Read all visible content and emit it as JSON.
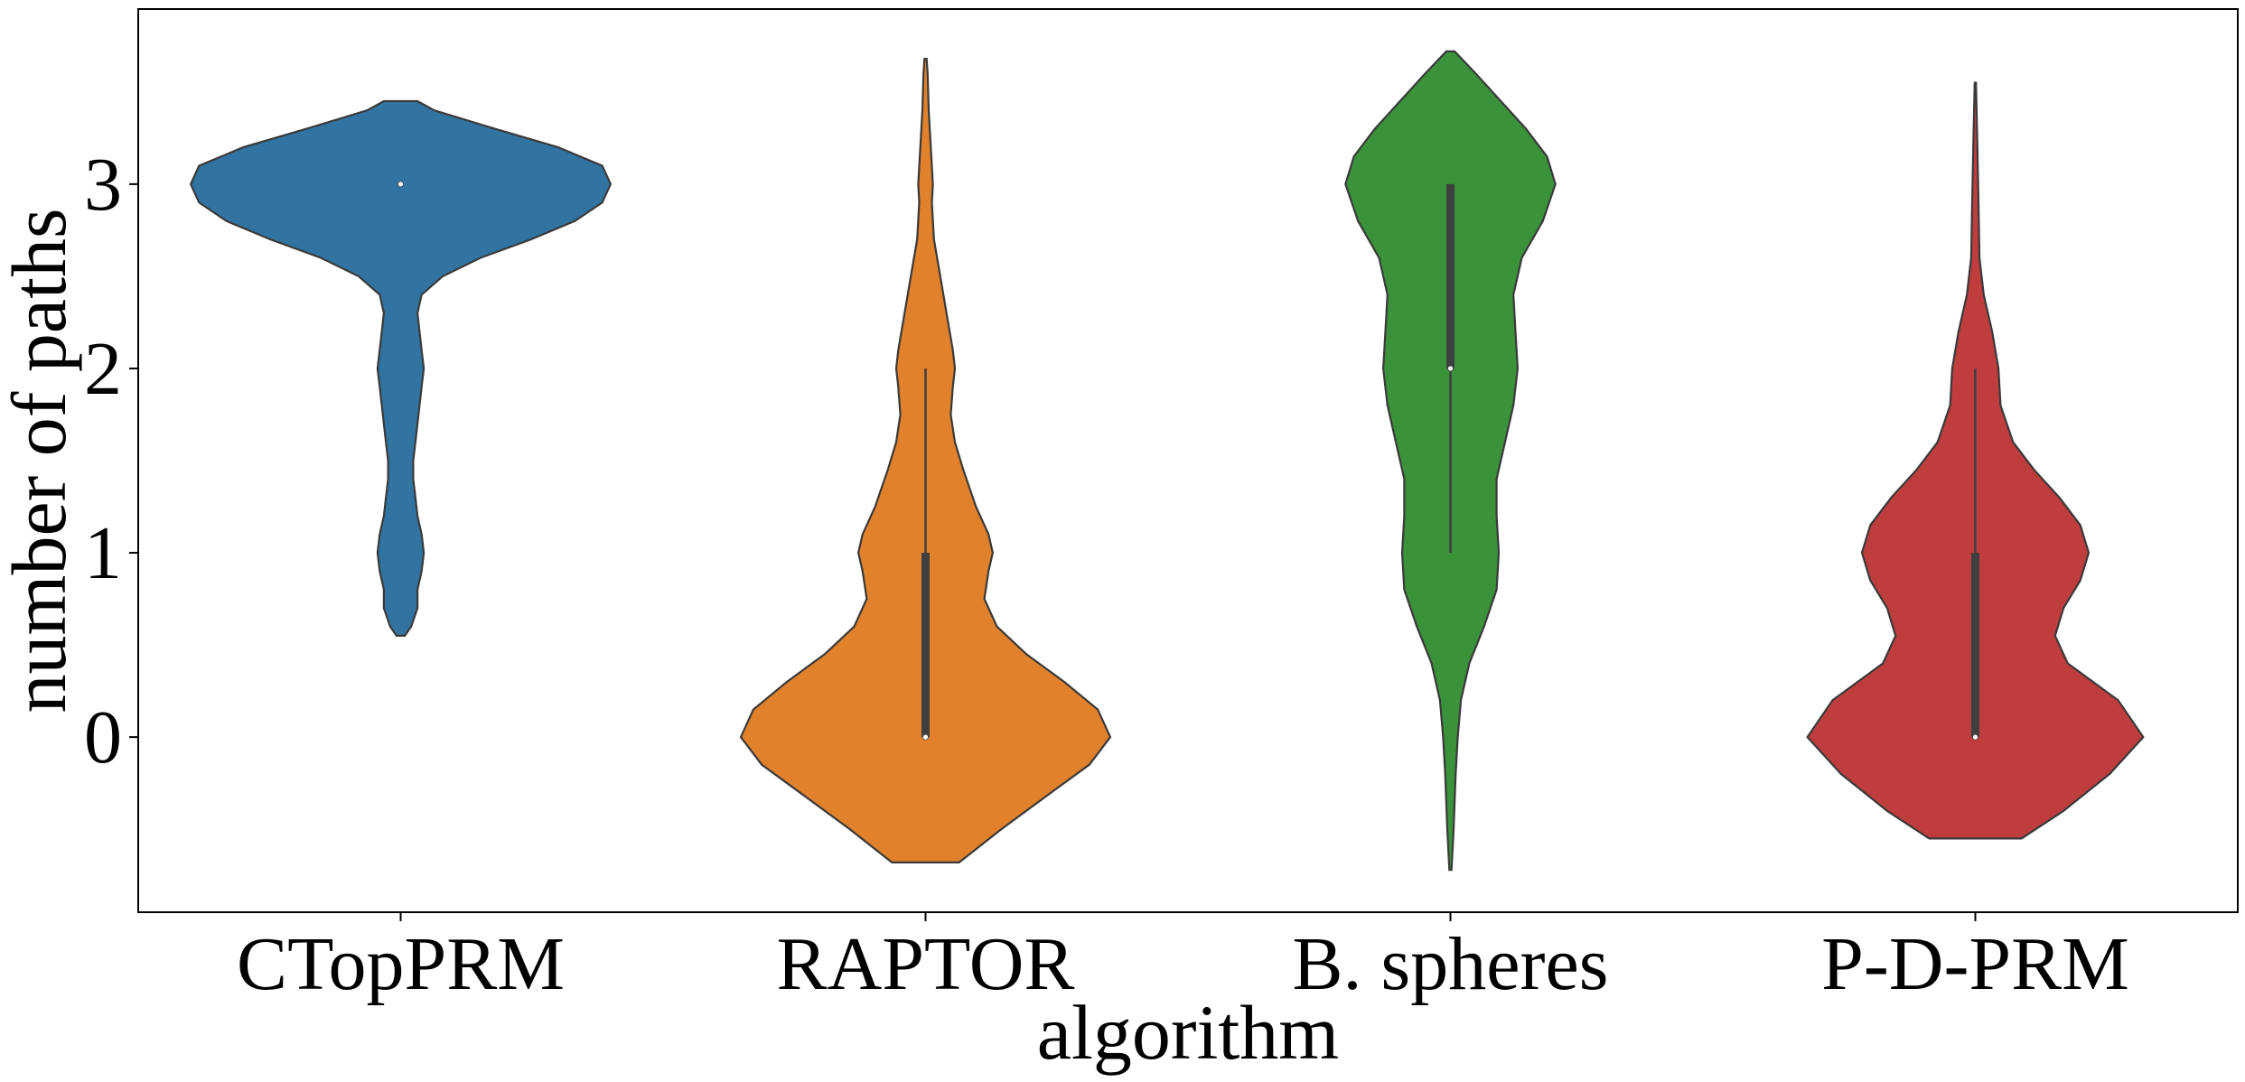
{
  "chart_data": {
    "type": "violin",
    "title": "",
    "xlabel": "algorithm",
    "ylabel": "number of paths",
    "categories": [
      "CTopPRM",
      "RAPTOR",
      "B. spheres",
      "P-D-PRM"
    ],
    "yticks": [
      "0",
      "1",
      "2",
      "3"
    ],
    "ylim": [
      -0.95,
      3.95
    ],
    "grid": false,
    "legend": "none",
    "series": [
      {
        "category": "CTopPRM",
        "color": "#3274a1",
        "median": 3,
        "q1": 3,
        "q3": 3,
        "whisker_low": 3,
        "whisker_high": 3,
        "y_min": 0.55,
        "y_max": 3.45,
        "density": [
          [
            0.55,
            0.02
          ],
          [
            0.6,
            0.05
          ],
          [
            0.7,
            0.08
          ],
          [
            0.8,
            0.08
          ],
          [
            0.9,
            0.1
          ],
          [
            1.0,
            0.11
          ],
          [
            1.1,
            0.1
          ],
          [
            1.2,
            0.08
          ],
          [
            1.3,
            0.07
          ],
          [
            1.4,
            0.06
          ],
          [
            1.5,
            0.06
          ],
          [
            1.6,
            0.07
          ],
          [
            1.7,
            0.08
          ],
          [
            1.8,
            0.09
          ],
          [
            1.9,
            0.1
          ],
          [
            2.0,
            0.11
          ],
          [
            2.1,
            0.1
          ],
          [
            2.2,
            0.09
          ],
          [
            2.3,
            0.08
          ],
          [
            2.4,
            0.1
          ],
          [
            2.5,
            0.2
          ],
          [
            2.6,
            0.38
          ],
          [
            2.7,
            0.62
          ],
          [
            2.8,
            0.83
          ],
          [
            2.9,
            0.96
          ],
          [
            3.0,
            1.0
          ],
          [
            3.1,
            0.96
          ],
          [
            3.2,
            0.75
          ],
          [
            3.3,
            0.45
          ],
          [
            3.4,
            0.16
          ],
          [
            3.45,
            0.08
          ]
        ]
      },
      {
        "category": "RAPTOR",
        "color": "#e1812c",
        "median": 0,
        "q1": 0,
        "q3": 1,
        "whisker_low": 0,
        "whisker_high": 2,
        "y_min": -0.68,
        "y_max": 3.68,
        "density": [
          [
            -0.68,
            0.16
          ],
          [
            -0.5,
            0.36
          ],
          [
            -0.3,
            0.6
          ],
          [
            -0.15,
            0.78
          ],
          [
            0.0,
            0.88
          ],
          [
            0.15,
            0.82
          ],
          [
            0.3,
            0.66
          ],
          [
            0.45,
            0.48
          ],
          [
            0.6,
            0.34
          ],
          [
            0.75,
            0.28
          ],
          [
            0.9,
            0.3
          ],
          [
            1.0,
            0.32
          ],
          [
            1.1,
            0.3
          ],
          [
            1.25,
            0.24
          ],
          [
            1.45,
            0.18
          ],
          [
            1.6,
            0.14
          ],
          [
            1.75,
            0.12
          ],
          [
            1.9,
            0.13
          ],
          [
            2.0,
            0.14
          ],
          [
            2.1,
            0.13
          ],
          [
            2.3,
            0.1
          ],
          [
            2.5,
            0.07
          ],
          [
            2.7,
            0.04
          ],
          [
            2.9,
            0.03
          ],
          [
            3.0,
            0.035
          ],
          [
            3.2,
            0.025
          ],
          [
            3.4,
            0.015
          ],
          [
            3.6,
            0.01
          ],
          [
            3.68,
            0.005
          ]
        ]
      },
      {
        "category": "B. spheres",
        "color": "#3a923a",
        "median": 2,
        "q1": 2,
        "q3": 3,
        "whisker_low": 1,
        "whisker_high": 3,
        "y_min": -0.72,
        "y_max": 3.72,
        "density": [
          [
            -0.72,
            0.005
          ],
          [
            -0.5,
            0.015
          ],
          [
            -0.2,
            0.025
          ],
          [
            0.0,
            0.035
          ],
          [
            0.2,
            0.05
          ],
          [
            0.4,
            0.09
          ],
          [
            0.6,
            0.16
          ],
          [
            0.8,
            0.22
          ],
          [
            1.0,
            0.23
          ],
          [
            1.2,
            0.22
          ],
          [
            1.4,
            0.22
          ],
          [
            1.6,
            0.26
          ],
          [
            1.8,
            0.3
          ],
          [
            2.0,
            0.32
          ],
          [
            2.2,
            0.31
          ],
          [
            2.4,
            0.3
          ],
          [
            2.6,
            0.34
          ],
          [
            2.8,
            0.44
          ],
          [
            3.0,
            0.5
          ],
          [
            3.15,
            0.46
          ],
          [
            3.3,
            0.36
          ],
          [
            3.45,
            0.24
          ],
          [
            3.6,
            0.12
          ],
          [
            3.72,
            0.02
          ]
        ]
      },
      {
        "category": "P-D-PRM",
        "color": "#c03d3e",
        "median": 0,
        "q1": 0,
        "q3": 1,
        "whisker_low": 0,
        "whisker_high": 2,
        "y_min": -0.55,
        "y_max": 3.55,
        "density": [
          [
            -0.55,
            0.22
          ],
          [
            -0.4,
            0.42
          ],
          [
            -0.2,
            0.64
          ],
          [
            0.0,
            0.8
          ],
          [
            0.2,
            0.68
          ],
          [
            0.4,
            0.44
          ],
          [
            0.55,
            0.38
          ],
          [
            0.7,
            0.42
          ],
          [
            0.85,
            0.5
          ],
          [
            1.0,
            0.54
          ],
          [
            1.15,
            0.5
          ],
          [
            1.3,
            0.4
          ],
          [
            1.45,
            0.28
          ],
          [
            1.6,
            0.18
          ],
          [
            1.8,
            0.12
          ],
          [
            2.0,
            0.11
          ],
          [
            2.2,
            0.08
          ],
          [
            2.4,
            0.04
          ],
          [
            2.6,
            0.02
          ],
          [
            2.9,
            0.015
          ],
          [
            3.2,
            0.01
          ],
          [
            3.55,
            0.003
          ]
        ]
      }
    ]
  }
}
